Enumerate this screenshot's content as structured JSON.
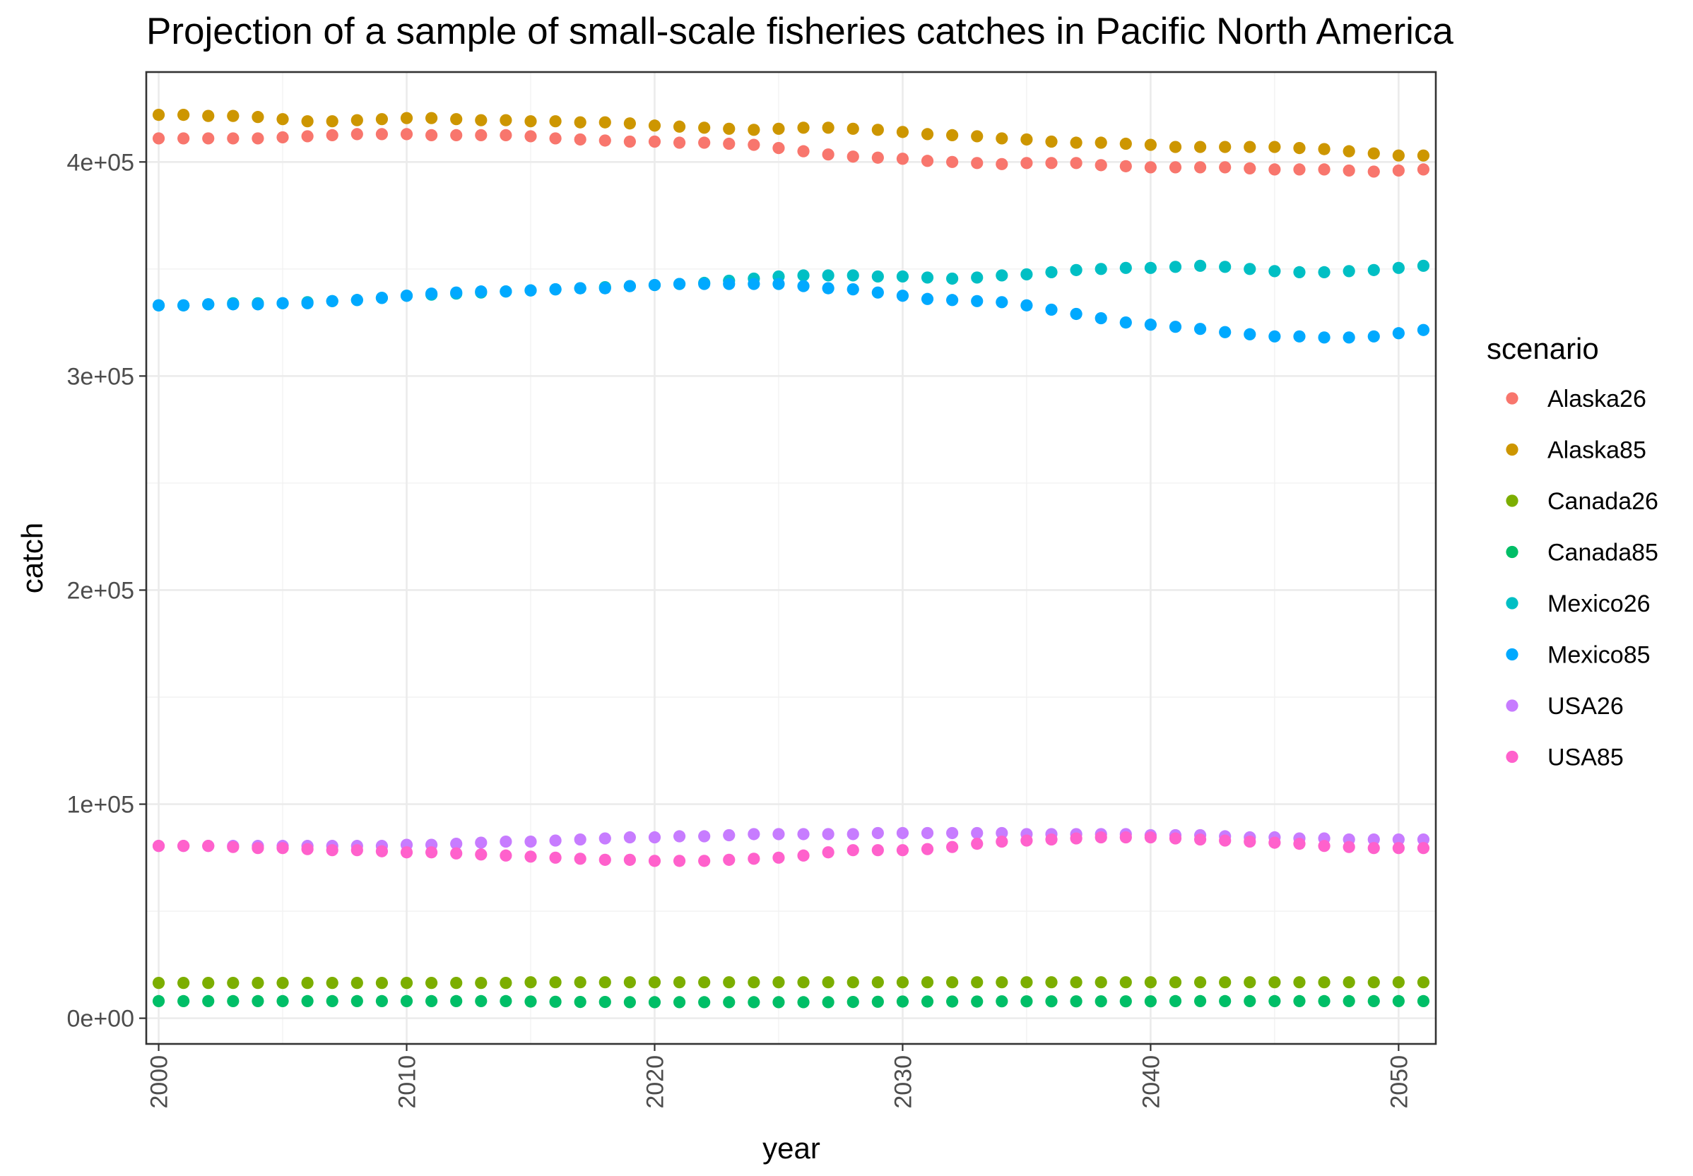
{
  "chart_data": {
    "type": "scatter",
    "title": "Projection of a sample of small-scale fisheries catches in Pacific North America",
    "xlabel": "year",
    "ylabel": "catch",
    "xlim": [
      1999.5,
      2051.5
    ],
    "ylim": [
      -12000,
      442000
    ],
    "x_ticks": [
      2000,
      2010,
      2020,
      2030,
      2040,
      2050
    ],
    "x_tick_labels": [
      "2000",
      "2010",
      "2020",
      "2030",
      "2040",
      "2050"
    ],
    "y_ticks": [
      0,
      100000,
      200000,
      300000,
      400000
    ],
    "y_tick_labels": [
      "0e+00",
      "1e+05",
      "2e+05",
      "3e+05",
      "4e+05"
    ],
    "grid": true,
    "legend": {
      "title": "scenario",
      "position": "right"
    },
    "x": [
      2000,
      2001,
      2002,
      2003,
      2004,
      2005,
      2006,
      2007,
      2008,
      2009,
      2010,
      2011,
      2012,
      2013,
      2014,
      2015,
      2016,
      2017,
      2018,
      2019,
      2020,
      2021,
      2022,
      2023,
      2024,
      2025,
      2026,
      2027,
      2028,
      2029,
      2030,
      2031,
      2032,
      2033,
      2034,
      2035,
      2036,
      2037,
      2038,
      2039,
      2040,
      2041,
      2042,
      2043,
      2044,
      2045,
      2046,
      2047,
      2048,
      2049,
      2050,
      2051
    ],
    "series": [
      {
        "name": "Alaska26",
        "color": "#F8766D",
        "values": [
          411000,
          411000,
          411000,
          411000,
          411000,
          411500,
          412000,
          412500,
          413000,
          413000,
          413000,
          412500,
          412500,
          412500,
          412500,
          412000,
          411000,
          410500,
          410000,
          409500,
          409500,
          409000,
          409000,
          408500,
          408000,
          406500,
          405000,
          403500,
          402500,
          402000,
          401500,
          400500,
          400000,
          399500,
          399000,
          399500,
          399500,
          399500,
          398500,
          398000,
          397500,
          397500,
          397500,
          397500,
          397000,
          396500,
          396500,
          396500,
          396000,
          395500,
          396000,
          396500
        ]
      },
      {
        "name": "Alaska85",
        "color": "#CD9600",
        "values": [
          422000,
          422000,
          421500,
          421500,
          421000,
          420000,
          419000,
          419000,
          419500,
          420000,
          420500,
          420500,
          420000,
          419500,
          419500,
          419000,
          419000,
          418500,
          418500,
          418000,
          417000,
          416500,
          416000,
          415500,
          415000,
          415500,
          416000,
          416000,
          415500,
          415000,
          414000,
          413000,
          412500,
          412000,
          411000,
          410500,
          409500,
          409000,
          409000,
          408500,
          408000,
          407000,
          407000,
          407000,
          407000,
          407000,
          406500,
          406000,
          405000,
          404000,
          403000,
          403000
        ]
      },
      {
        "name": "Canada26",
        "color": "#7CAE00",
        "values": [
          16500,
          16500,
          16500,
          16500,
          16500,
          16500,
          16500,
          16500,
          16500,
          16500,
          16500,
          16500,
          16500,
          16500,
          16500,
          16800,
          16800,
          16800,
          16800,
          16800,
          16800,
          16800,
          16800,
          16800,
          16800,
          16800,
          16800,
          16800,
          16800,
          16800,
          16800,
          16800,
          16800,
          16800,
          16800,
          16800,
          16800,
          16800,
          16800,
          16800,
          16800,
          16800,
          16800,
          16800,
          16800,
          16800,
          16800,
          16800,
          16800,
          16800,
          16800,
          16800
        ]
      },
      {
        "name": "Canada85",
        "color": "#00BE67",
        "values": [
          8000,
          8000,
          8000,
          8000,
          8000,
          8000,
          8000,
          8000,
          8000,
          8000,
          8000,
          8000,
          8000,
          8000,
          8000,
          7800,
          7700,
          7600,
          7600,
          7500,
          7500,
          7500,
          7500,
          7500,
          7500,
          7500,
          7500,
          7500,
          7600,
          7700,
          7800,
          7800,
          7800,
          7800,
          7900,
          7900,
          7900,
          7900,
          7900,
          7900,
          7900,
          8000,
          8000,
          8000,
          8000,
          8000,
          8000,
          8000,
          8000,
          8000,
          8000,
          8000
        ]
      },
      {
        "name": "Mexico26",
        "color": "#00BFC4",
        "values": [
          333000,
          333000,
          333500,
          334000,
          334000,
          334000,
          334500,
          335000,
          335500,
          336500,
          337500,
          338000,
          338500,
          339000,
          339500,
          340000,
          340500,
          341000,
          341500,
          342000,
          342500,
          343000,
          343500,
          344500,
          345500,
          346500,
          347000,
          347000,
          347000,
          346500,
          346500,
          346000,
          345500,
          346000,
          347000,
          347500,
          348500,
          349500,
          350000,
          350500,
          350500,
          351000,
          351500,
          351000,
          350000,
          349000,
          348500,
          348500,
          349000,
          349500,
          350500,
          351500
        ]
      },
      {
        "name": "Mexico85",
        "color": "#00A9FF",
        "values": [
          333000,
          333000,
          333500,
          333500,
          333500,
          334000,
          334000,
          335000,
          335500,
          336500,
          337500,
          338500,
          339000,
          339500,
          339500,
          340000,
          340500,
          341000,
          341000,
          342000,
          342500,
          343000,
          343000,
          343000,
          343000,
          343000,
          342000,
          341000,
          340500,
          339000,
          337500,
          336000,
          335500,
          335000,
          334500,
          333000,
          331000,
          329000,
          327000,
          325000,
          324000,
          323000,
          322000,
          320500,
          319500,
          318500,
          318500,
          318000,
          318000,
          318500,
          320000,
          321500
        ]
      },
      {
        "name": "USA26",
        "color": "#C77CFF",
        "values": [
          80500,
          80500,
          80500,
          80500,
          80500,
          80500,
          80500,
          80500,
          80500,
          80500,
          81000,
          81000,
          81500,
          82000,
          82500,
          82500,
          83000,
          83500,
          84000,
          84500,
          84500,
          85000,
          85000,
          85500,
          86000,
          86000,
          86000,
          86000,
          86000,
          86500,
          86500,
          86500,
          86500,
          86500,
          86500,
          86000,
          86000,
          86000,
          86000,
          86000,
          85500,
          85500,
          85500,
          85000,
          84500,
          84500,
          84000,
          84000,
          83500,
          83500,
          83500,
          83500
        ]
      },
      {
        "name": "USA85",
        "color": "#FF61CC",
        "values": [
          80500,
          80500,
          80500,
          80000,
          79500,
          79500,
          79000,
          78500,
          78500,
          78000,
          77500,
          77500,
          77000,
          76500,
          76000,
          75500,
          75000,
          74500,
          74000,
          74000,
          73500,
          73500,
          73500,
          74000,
          74500,
          75000,
          76000,
          77500,
          78500,
          78500,
          78500,
          79000,
          80000,
          81500,
          82500,
          83000,
          83500,
          84000,
          84500,
          84500,
          84500,
          84000,
          83500,
          83000,
          82500,
          82000,
          81500,
          80500,
          80000,
          79500,
          79500,
          79500
        ]
      }
    ]
  }
}
